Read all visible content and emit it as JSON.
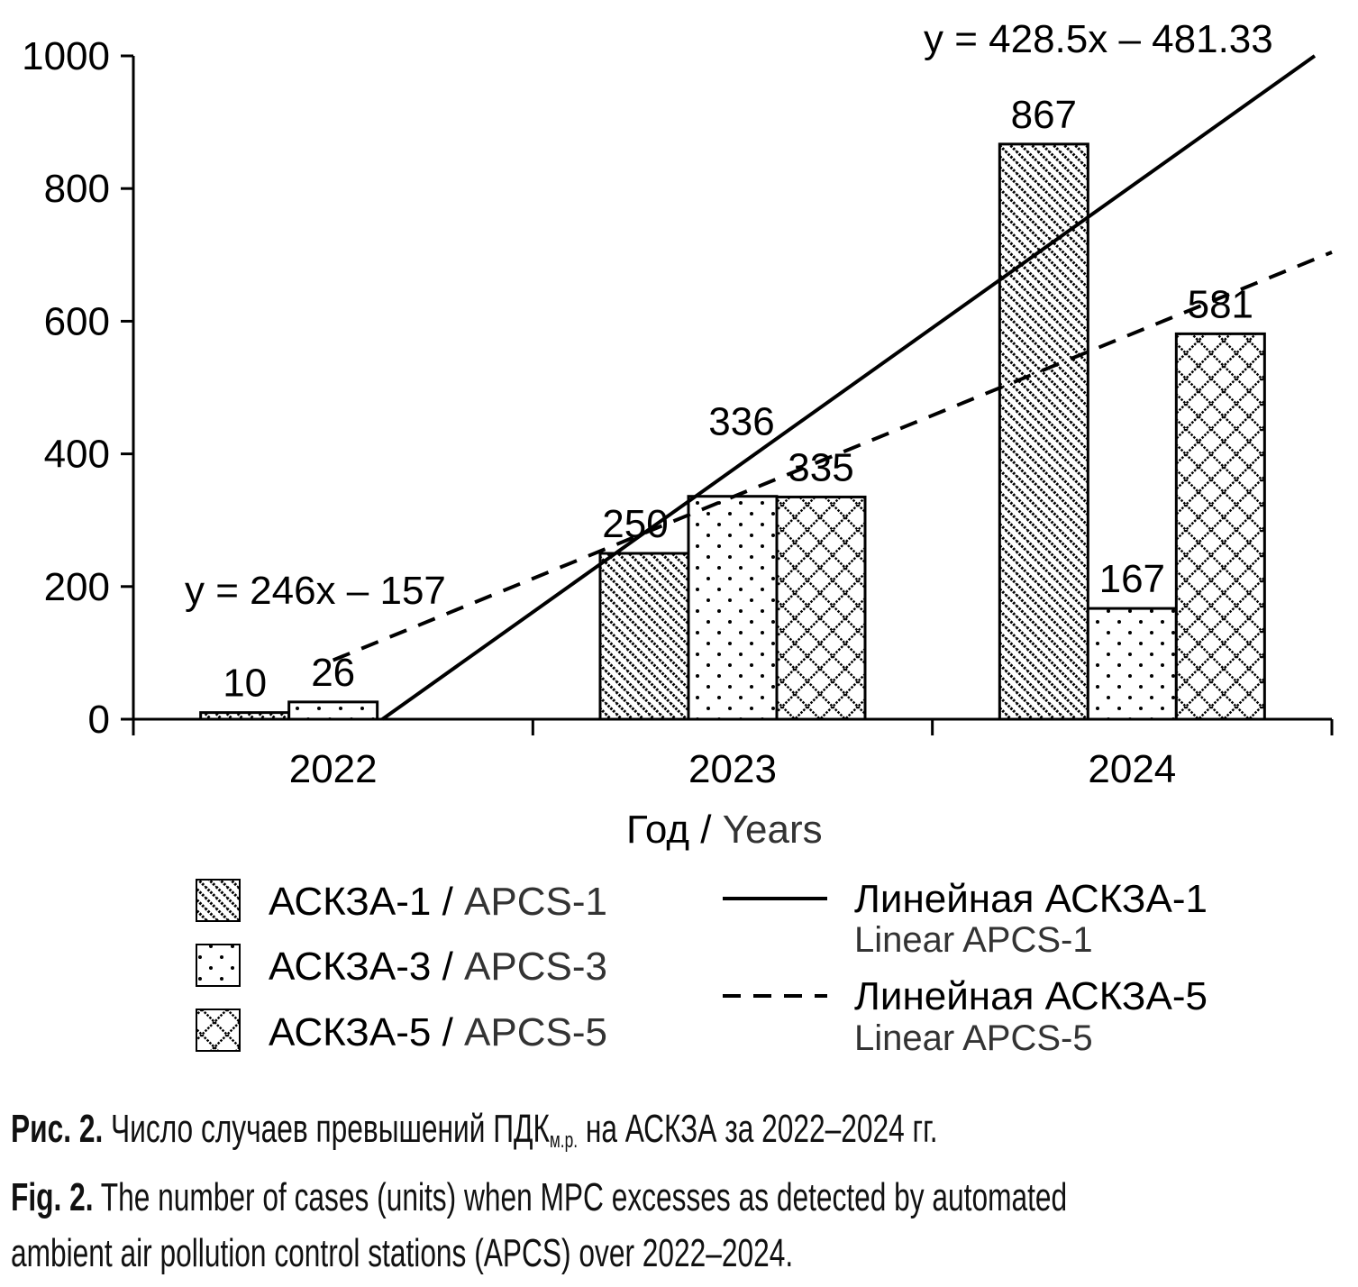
{
  "chart_data": {
    "type": "bar",
    "categories": [
      "2022",
      "2023",
      "2024"
    ],
    "series": [
      {
        "name": "АСКЗА-1",
        "name_en": "APCS-1",
        "pattern": "diagonal",
        "values": [
          10,
          250,
          867
        ]
      },
      {
        "name": "АСКЗА-3",
        "name_en": "APCS-3",
        "pattern": "dots",
        "values": [
          26,
          336,
          167
        ]
      },
      {
        "name": "АСКЗА-5",
        "name_en": "APCS-5",
        "pattern": "crosshatch",
        "values": [
          null,
          335,
          581
        ]
      }
    ],
    "trendlines": [
      {
        "name": "Линейная АСКЗА-1",
        "name_en": "Linear APCS-1",
        "style": "solid",
        "slope": 428.5,
        "intercept": -481.33,
        "equation": "y = 428.5x – 481.33"
      },
      {
        "name": "Линейная АСКЗА-5",
        "name_en": "Linear APCS-5",
        "style": "dashed",
        "slope": 246,
        "intercept": -157,
        "equation": "y = 246x – 157"
      }
    ],
    "xlabel": "Год",
    "xlabel_en": "Years",
    "xlabel_sep": " / ",
    "ylabel": "",
    "ylim": [
      0,
      1000
    ],
    "yticks": [
      0,
      200,
      400,
      600,
      800,
      1000
    ],
    "grid": false,
    "legend_placement": "bottom"
  },
  "caption": {
    "ru_label": "Рис. 2.",
    "ru_text": "Число случаев превышений ПДК",
    "ru_sub": "м.р.",
    "ru_text2": "на АСКЗА за 2022–2024 гг.",
    "en_label": "Fig. 2.",
    "en_line1": "The number of cases (units) when MPC excesses as detected by automated",
    "en_line2": "ambient air pollution control stations (APCS) over 2022–2024."
  }
}
